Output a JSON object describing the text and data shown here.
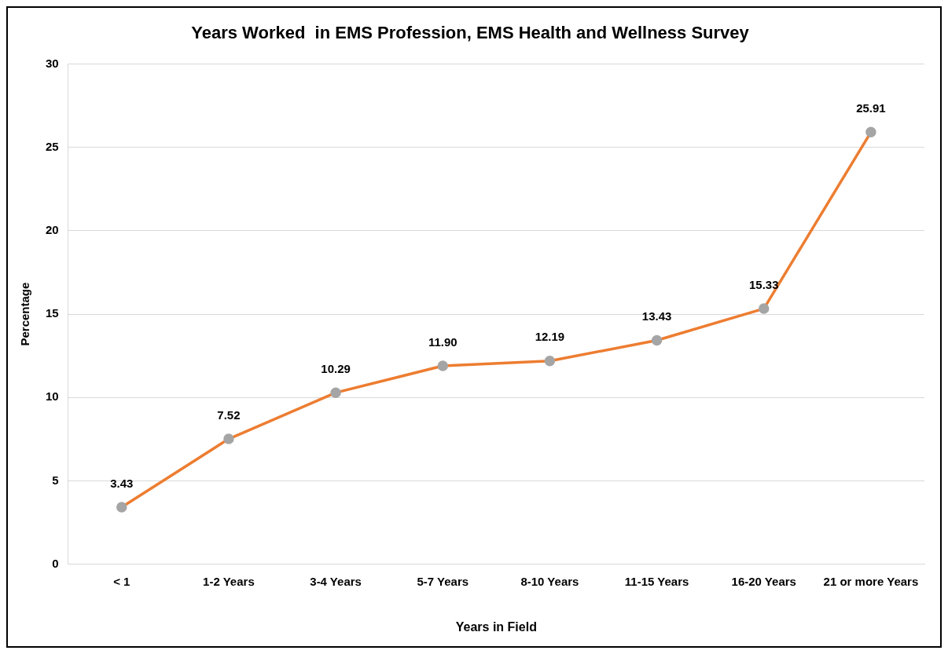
{
  "chart_data": {
    "type": "line",
    "title": "Years Worked  in EMS Profession, EMS Health and Wellness Survey",
    "xlabel": "Years in Field",
    "ylabel": "Percentage",
    "categories": [
      "< 1",
      "1-2 Years",
      "3-4 Years",
      "5-7 Years",
      "8-10 Years",
      "11-15 Years",
      "16-20 Years",
      "21 or more Years"
    ],
    "series": [
      {
        "color": "#ed7d31",
        "colors": [
          "#a5a5a5",
          "#a5a5a5",
          "#a5a5a5",
          "#a5a5a5",
          "#a5a5a5",
          "#a5a5a5",
          "#a5a5a5",
          "#a5a5a5"
        ],
        "values": [
          3.43,
          7.52,
          10.29,
          11.9,
          12.19,
          13.43,
          15.33,
          25.91
        ]
      }
    ],
    "value_labels": [
      "3.43",
      "7.52",
      "10.29",
      "11.90",
      "12.19",
      "13.43",
      "15.33",
      "25.91"
    ],
    "marker": "circle",
    "line_style": "solid",
    "ylim": [
      0,
      30
    ],
    "yticks": [
      0,
      5,
      10,
      15,
      20,
      25,
      30
    ],
    "grid": "y",
    "legend": false
  }
}
